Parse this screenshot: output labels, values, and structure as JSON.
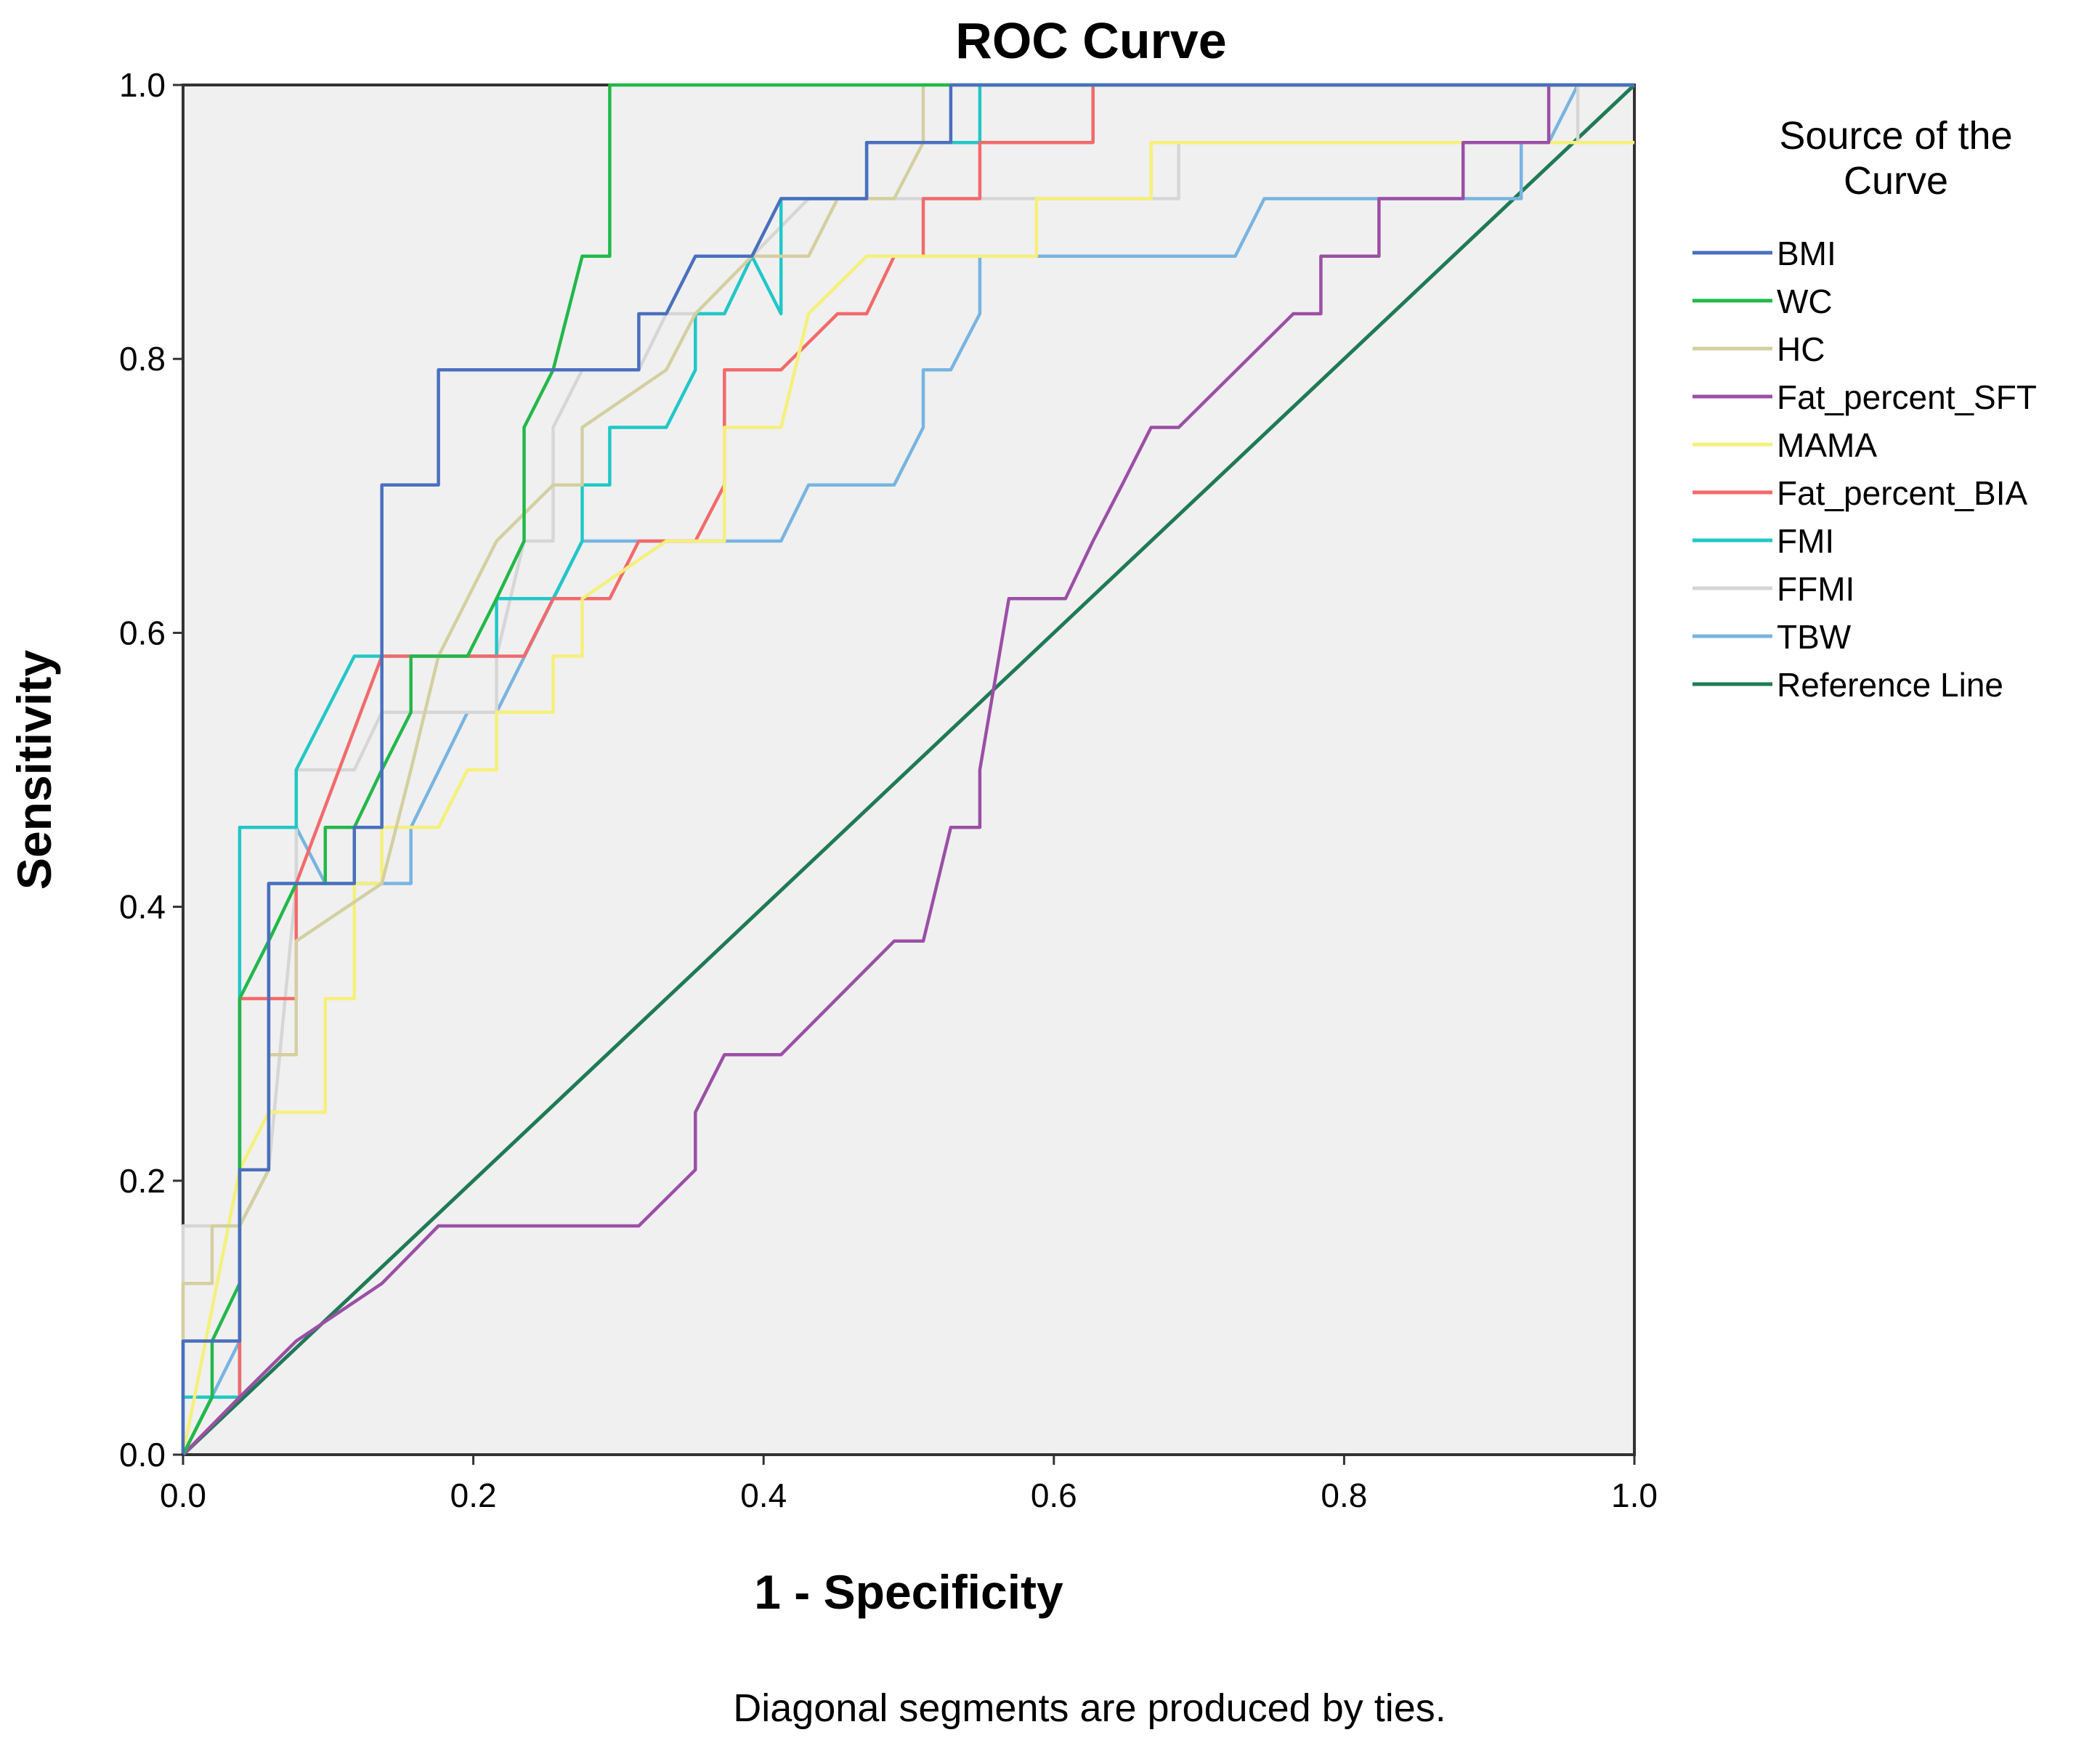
{
  "chart_data": {
    "type": "line",
    "title": "ROC Curve",
    "xlabel": "1 - Specificity",
    "ylabel": "Sensitivity",
    "xlim": [
      0.0,
      1.0
    ],
    "ylim": [
      0.0,
      1.0
    ],
    "x_ticks": [
      "0.0",
      "0.2",
      "0.4",
      "0.6",
      "0.8",
      "1.0"
    ],
    "y_ticks": [
      "0.0",
      "0.2",
      "0.4",
      "0.6",
      "0.8",
      "1.0"
    ],
    "grid": false,
    "plot_background": "#f0f0f0",
    "legend_title": "Source of the Curve",
    "legend_position": "right",
    "footnote": "Diagonal segments are produced by ties.",
    "series": [
      {
        "name": "BMI",
        "color": "#4a6fbe",
        "points": [
          [
            0,
            0
          ],
          [
            0,
            0.083
          ],
          [
            0.039,
            0.083
          ],
          [
            0.039,
            0.208
          ],
          [
            0.059,
            0.208
          ],
          [
            0.059,
            0.417
          ],
          [
            0.118,
            0.417
          ],
          [
            0.118,
            0.458
          ],
          [
            0.137,
            0.458
          ],
          [
            0.137,
            0.708
          ],
          [
            0.176,
            0.708
          ],
          [
            0.176,
            0.792
          ],
          [
            0.314,
            0.792
          ],
          [
            0.314,
            0.833
          ],
          [
            0.333,
            0.833
          ],
          [
            0.353,
            0.875
          ],
          [
            0.392,
            0.875
          ],
          [
            0.412,
            0.917
          ],
          [
            0.471,
            0.917
          ],
          [
            0.471,
            0.958
          ],
          [
            0.529,
            0.958
          ],
          [
            0.529,
            1.0
          ],
          [
            1.0,
            1.0
          ]
        ]
      },
      {
        "name": "WC",
        "color": "#22b84a",
        "points": [
          [
            0,
            0
          ],
          [
            0.02,
            0.042
          ],
          [
            0.02,
            0.083
          ],
          [
            0.039,
            0.125
          ],
          [
            0.039,
            0.333
          ],
          [
            0.059,
            0.375
          ],
          [
            0.078,
            0.417
          ],
          [
            0.098,
            0.417
          ],
          [
            0.098,
            0.458
          ],
          [
            0.118,
            0.458
          ],
          [
            0.137,
            0.5
          ],
          [
            0.157,
            0.542
          ],
          [
            0.157,
            0.583
          ],
          [
            0.196,
            0.583
          ],
          [
            0.216,
            0.625
          ],
          [
            0.235,
            0.667
          ],
          [
            0.235,
            0.75
          ],
          [
            0.255,
            0.792
          ],
          [
            0.275,
            0.875
          ],
          [
            0.294,
            0.875
          ],
          [
            0.294,
            1.0
          ],
          [
            1.0,
            1.0
          ]
        ]
      },
      {
        "name": "HC",
        "color": "#d4cfa0",
        "points": [
          [
            0,
            0
          ],
          [
            0,
            0.125
          ],
          [
            0.02,
            0.125
          ],
          [
            0.02,
            0.167
          ],
          [
            0.039,
            0.167
          ],
          [
            0.059,
            0.208
          ],
          [
            0.059,
            0.292
          ],
          [
            0.078,
            0.292
          ],
          [
            0.078,
            0.375
          ],
          [
            0.137,
            0.417
          ],
          [
            0.157,
            0.5
          ],
          [
            0.176,
            0.583
          ],
          [
            0.216,
            0.667
          ],
          [
            0.255,
            0.708
          ],
          [
            0.275,
            0.708
          ],
          [
            0.275,
            0.75
          ],
          [
            0.333,
            0.792
          ],
          [
            0.353,
            0.833
          ],
          [
            0.392,
            0.875
          ],
          [
            0.431,
            0.875
          ],
          [
            0.451,
            0.917
          ],
          [
            0.49,
            0.917
          ],
          [
            0.51,
            0.958
          ],
          [
            0.51,
            1.0
          ],
          [
            1.0,
            1.0
          ]
        ]
      },
      {
        "name": "Fat_percent_SFT",
        "color": "#9b4fa6",
        "points": [
          [
            0,
            0
          ],
          [
            0.039,
            0.042
          ],
          [
            0.078,
            0.083
          ],
          [
            0.137,
            0.125
          ],
          [
            0.176,
            0.167
          ],
          [
            0.314,
            0.167
          ],
          [
            0.353,
            0.208
          ],
          [
            0.353,
            0.25
          ],
          [
            0.373,
            0.292
          ],
          [
            0.412,
            0.292
          ],
          [
            0.49,
            0.375
          ],
          [
            0.51,
            0.375
          ],
          [
            0.529,
            0.458
          ],
          [
            0.549,
            0.458
          ],
          [
            0.549,
            0.5
          ],
          [
            0.569,
            0.625
          ],
          [
            0.608,
            0.625
          ],
          [
            0.627,
            0.667
          ],
          [
            0.647,
            0.708
          ],
          [
            0.667,
            0.75
          ],
          [
            0.686,
            0.75
          ],
          [
            0.765,
            0.833
          ],
          [
            0.784,
            0.833
          ],
          [
            0.784,
            0.875
          ],
          [
            0.824,
            0.875
          ],
          [
            0.824,
            0.917
          ],
          [
            0.882,
            0.917
          ],
          [
            0.882,
            0.958
          ],
          [
            0.941,
            0.958
          ],
          [
            0.941,
            1.0
          ],
          [
            1.0,
            1.0
          ]
        ]
      },
      {
        "name": "MAMA",
        "color": "#f5f07a",
        "points": [
          [
            0,
            0
          ],
          [
            0.039,
            0.208
          ],
          [
            0.059,
            0.25
          ],
          [
            0.098,
            0.25
          ],
          [
            0.098,
            0.333
          ],
          [
            0.118,
            0.333
          ],
          [
            0.118,
            0.417
          ],
          [
            0.137,
            0.417
          ],
          [
            0.137,
            0.458
          ],
          [
            0.176,
            0.458
          ],
          [
            0.196,
            0.5
          ],
          [
            0.216,
            0.5
          ],
          [
            0.216,
            0.542
          ],
          [
            0.255,
            0.542
          ],
          [
            0.255,
            0.583
          ],
          [
            0.275,
            0.583
          ],
          [
            0.275,
            0.625
          ],
          [
            0.333,
            0.667
          ],
          [
            0.373,
            0.667
          ],
          [
            0.373,
            0.75
          ],
          [
            0.412,
            0.75
          ],
          [
            0.431,
            0.833
          ],
          [
            0.471,
            0.875
          ],
          [
            0.588,
            0.875
          ],
          [
            0.588,
            0.917
          ],
          [
            0.667,
            0.917
          ],
          [
            0.667,
            0.958
          ],
          [
            1.0,
            0.958
          ]
        ]
      },
      {
        "name": "Fat_percent_BIA",
        "color": "#f26a6a",
        "points": [
          [
            0,
            0
          ],
          [
            0.039,
            0.042
          ],
          [
            0.039,
            0.333
          ],
          [
            0.078,
            0.333
          ],
          [
            0.078,
            0.417
          ],
          [
            0.137,
            0.583
          ],
          [
            0.235,
            0.583
          ],
          [
            0.255,
            0.625
          ],
          [
            0.294,
            0.625
          ],
          [
            0.314,
            0.667
          ],
          [
            0.353,
            0.667
          ],
          [
            0.373,
            0.708
          ],
          [
            0.373,
            0.792
          ],
          [
            0.412,
            0.792
          ],
          [
            0.451,
            0.833
          ],
          [
            0.471,
            0.833
          ],
          [
            0.49,
            0.875
          ],
          [
            0.51,
            0.875
          ],
          [
            0.51,
            0.917
          ],
          [
            0.549,
            0.917
          ],
          [
            0.549,
            0.958
          ],
          [
            0.627,
            0.958
          ],
          [
            0.627,
            1.0
          ],
          [
            1.0,
            1.0
          ]
        ]
      },
      {
        "name": "FMI",
        "color": "#22c7c7",
        "points": [
          [
            0,
            0
          ],
          [
            0,
            0.042
          ],
          [
            0.039,
            0.042
          ],
          [
            0.039,
            0.458
          ],
          [
            0.078,
            0.458
          ],
          [
            0.078,
            0.5
          ],
          [
            0.118,
            0.583
          ],
          [
            0.216,
            0.583
          ],
          [
            0.216,
            0.625
          ],
          [
            0.255,
            0.625
          ],
          [
            0.275,
            0.667
          ],
          [
            0.275,
            0.708
          ],
          [
            0.294,
            0.708
          ],
          [
            0.294,
            0.75
          ],
          [
            0.333,
            0.75
          ],
          [
            0.353,
            0.792
          ],
          [
            0.353,
            0.833
          ],
          [
            0.373,
            0.833
          ],
          [
            0.392,
            0.875
          ],
          [
            0.412,
            0.833
          ],
          [
            0.412,
            0.917
          ],
          [
            0.471,
            0.917
          ],
          [
            0.471,
            0.958
          ],
          [
            0.549,
            0.958
          ],
          [
            0.549,
            1.0
          ],
          [
            1.0,
            1.0
          ]
        ]
      },
      {
        "name": "FFMI",
        "color": "#d6d6d6",
        "points": [
          [
            0,
            0
          ],
          [
            0,
            0.167
          ],
          [
            0.039,
            0.167
          ],
          [
            0.059,
            0.208
          ],
          [
            0.078,
            0.417
          ],
          [
            0.078,
            0.5
          ],
          [
            0.118,
            0.5
          ],
          [
            0.137,
            0.542
          ],
          [
            0.216,
            0.542
          ],
          [
            0.216,
            0.583
          ],
          [
            0.235,
            0.667
          ],
          [
            0.255,
            0.667
          ],
          [
            0.255,
            0.75
          ],
          [
            0.275,
            0.792
          ],
          [
            0.314,
            0.792
          ],
          [
            0.333,
            0.833
          ],
          [
            0.373,
            0.833
          ],
          [
            0.392,
            0.875
          ],
          [
            0.431,
            0.917
          ],
          [
            0.686,
            0.917
          ],
          [
            0.686,
            0.958
          ],
          [
            0.961,
            0.958
          ],
          [
            0.961,
            1.0
          ],
          [
            1.0,
            1.0
          ]
        ]
      },
      {
        "name": "TBW",
        "color": "#78b4e0",
        "points": [
          [
            0,
            0
          ],
          [
            0.039,
            0.083
          ],
          [
            0.039,
            0.167
          ],
          [
            0.059,
            0.208
          ],
          [
            0.059,
            0.417
          ],
          [
            0.078,
            0.417
          ],
          [
            0.078,
            0.458
          ],
          [
            0.098,
            0.417
          ],
          [
            0.157,
            0.417
          ],
          [
            0.157,
            0.458
          ],
          [
            0.196,
            0.542
          ],
          [
            0.216,
            0.542
          ],
          [
            0.275,
            0.667
          ],
          [
            0.412,
            0.667
          ],
          [
            0.431,
            0.708
          ],
          [
            0.49,
            0.708
          ],
          [
            0.51,
            0.75
          ],
          [
            0.51,
            0.792
          ],
          [
            0.529,
            0.792
          ],
          [
            0.549,
            0.833
          ],
          [
            0.549,
            0.875
          ],
          [
            0.725,
            0.875
          ],
          [
            0.745,
            0.917
          ],
          [
            0.922,
            0.917
          ],
          [
            0.922,
            0.958
          ],
          [
            0.941,
            0.958
          ],
          [
            0.961,
            1.0
          ],
          [
            1.0,
            1.0
          ]
        ]
      },
      {
        "name": "Reference Line",
        "color": "#1f7a55",
        "points": [
          [
            0,
            0
          ],
          [
            1.0,
            1.0
          ]
        ]
      }
    ]
  }
}
